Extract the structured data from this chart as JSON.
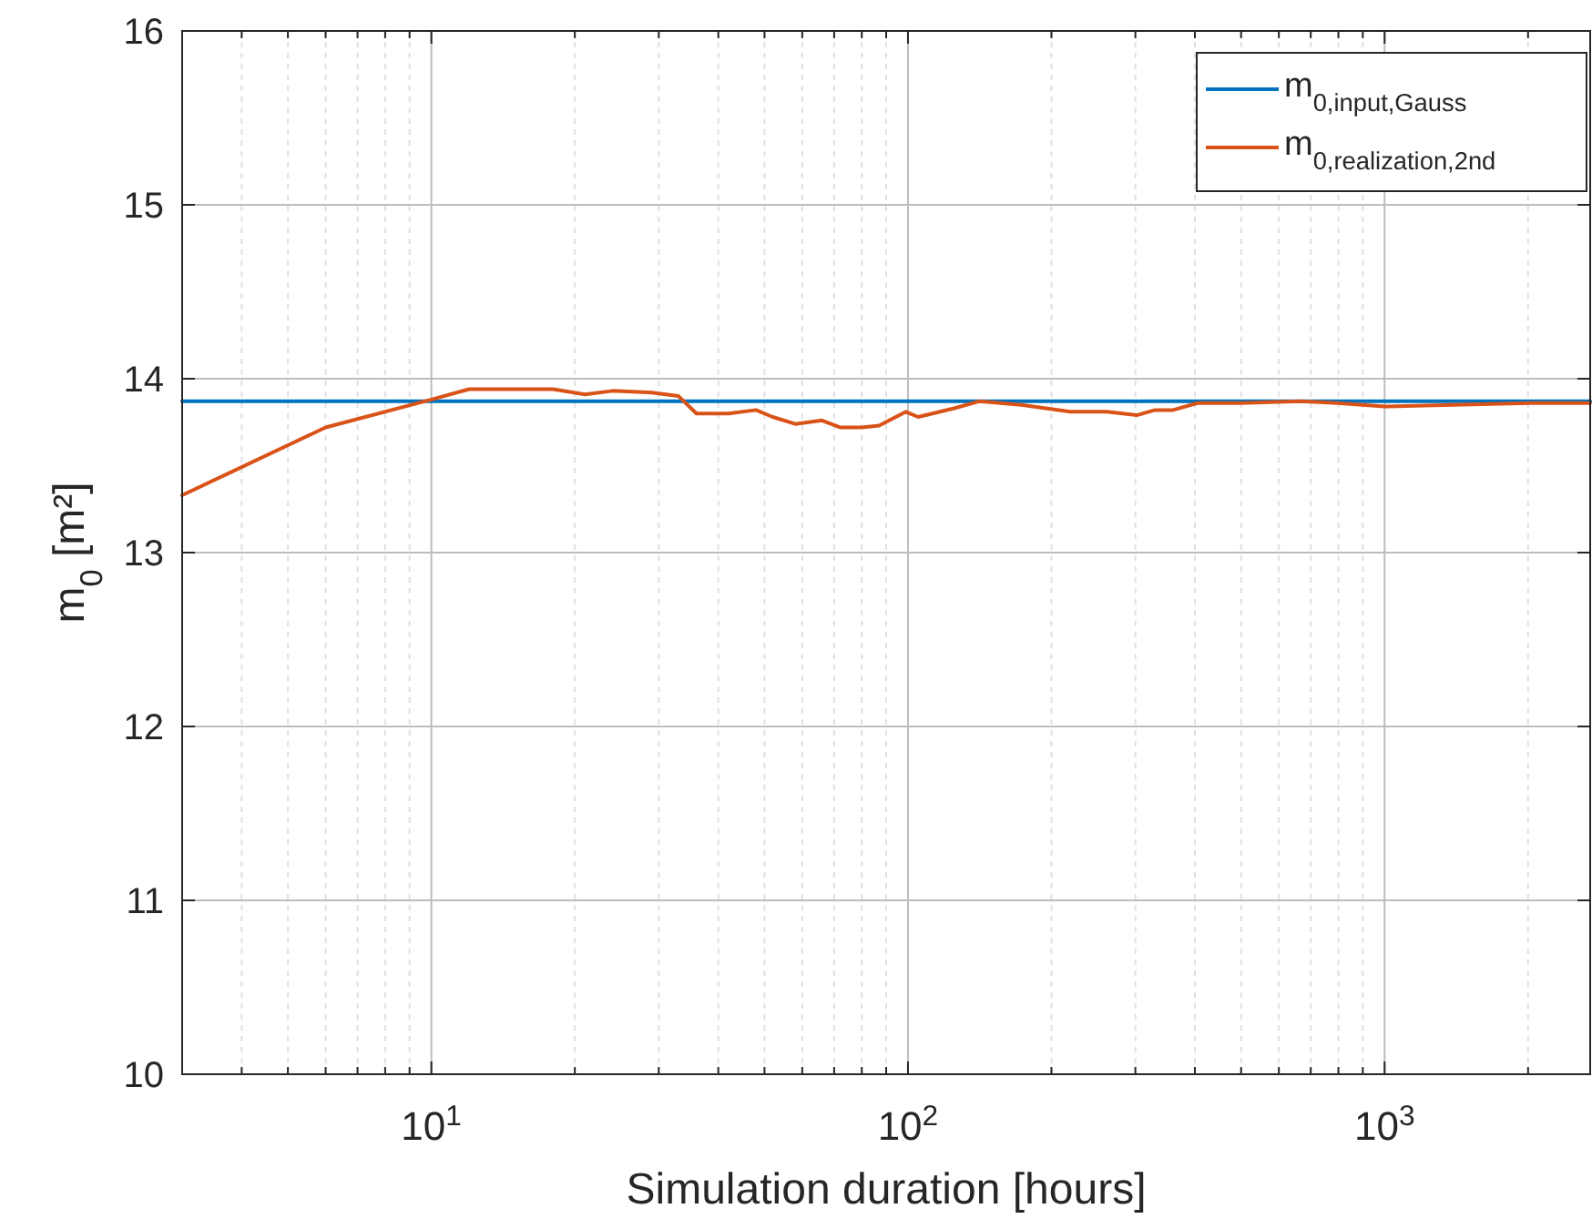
{
  "chart_data": {
    "type": "line",
    "xlabel": "Simulation duration [hours]",
    "ylabel": "m$_{0}$ [m²]",
    "log": "x",
    "grid": true,
    "legend": "top right",
    "line_style": "solid",
    "xlim": [
      3,
      2700
    ],
    "ylim": [
      10,
      16
    ],
    "xticks": [
      {
        "value": 4,
        "label": null
      },
      {
        "value": 5,
        "label": null
      },
      {
        "value": 6,
        "label": null
      },
      {
        "value": 7,
        "label": null
      },
      {
        "value": 8,
        "label": null
      },
      {
        "value": 9,
        "label": null
      },
      {
        "value": 10,
        "label": "10$^{1}$"
      },
      {
        "value": 20,
        "label": null
      },
      {
        "value": 30,
        "label": null
      },
      {
        "value": 40,
        "label": null
      },
      {
        "value": 50,
        "label": null
      },
      {
        "value": 60,
        "label": null
      },
      {
        "value": 70,
        "label": null
      },
      {
        "value": 80,
        "label": null
      },
      {
        "value": 90,
        "label": null
      },
      {
        "value": 100,
        "label": "10$^{2}$"
      },
      {
        "value": 200,
        "label": null
      },
      {
        "value": 300,
        "label": null
      },
      {
        "value": 400,
        "label": null
      },
      {
        "value": 500,
        "label": null
      },
      {
        "value": 600,
        "label": null
      },
      {
        "value": 700,
        "label": null
      },
      {
        "value": 800,
        "label": null
      },
      {
        "value": 900,
        "label": null
      },
      {
        "value": 1000,
        "label": "10$^{3}$"
      },
      {
        "value": 2000,
        "label": null
      }
    ],
    "yticks": [
      10,
      11,
      12,
      13,
      14,
      15,
      16
    ],
    "series": [
      {
        "name": "m$_{0,input,Gauss}$",
        "color": "#0072bd",
        "x": [
          3,
          2700
        ],
        "values": [
          13.87,
          13.87
        ]
      },
      {
        "name": "m$_{0,realization,2nd}$",
        "color": "#d95319",
        "x": [
          3,
          6,
          10,
          12,
          18,
          21,
          24,
          29,
          33,
          36,
          42,
          48,
          52,
          58,
          66,
          72,
          80,
          87,
          99,
          105,
          125,
          141,
          173,
          219,
          261,
          302,
          330,
          360,
          405,
          498,
          667,
          795,
          1000,
          1386,
          2028,
          2700
        ],
        "values": [
          13.33,
          13.72,
          13.88,
          13.94,
          13.94,
          13.91,
          13.93,
          13.92,
          13.9,
          13.8,
          13.8,
          13.82,
          13.78,
          13.74,
          13.76,
          13.72,
          13.72,
          13.73,
          13.81,
          13.78,
          13.83,
          13.87,
          13.85,
          13.81,
          13.81,
          13.79,
          13.82,
          13.82,
          13.86,
          13.86,
          13.87,
          13.86,
          13.84,
          13.85,
          13.86,
          13.86
        ]
      }
    ]
  }
}
